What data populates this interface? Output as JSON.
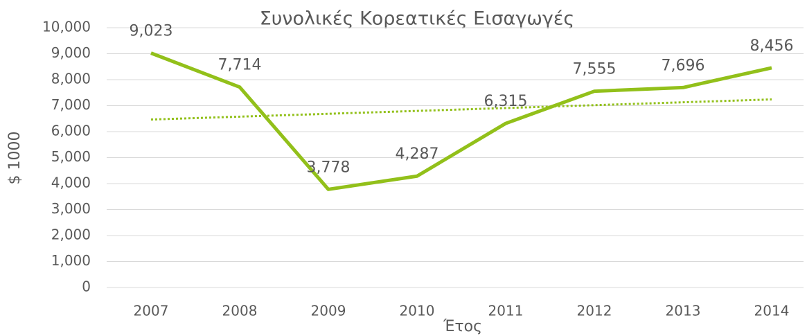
{
  "chart_data": {
    "type": "line",
    "title": "Συνολικές Κορεατικές Εισαγωγές",
    "x_label": "Έτος",
    "y_label": "$ 1000",
    "categories": [
      "2007",
      "2008",
      "2009",
      "2010",
      "2011",
      "2012",
      "2013",
      "2014"
    ],
    "series": [
      {
        "name": "Συνολικές Κορεατικές Εισαγωγές",
        "color": "#92c01a",
        "values": [
          9023,
          7714,
          3778,
          4287,
          6315,
          7555,
          7696,
          8456
        ],
        "value_labels": [
          "9,023",
          "7,714",
          "3,778",
          "4,287",
          "6,315",
          "7,555",
          "7,696",
          "8,456"
        ]
      }
    ],
    "trendline": {
      "type": "linear",
      "color": "#92c01a",
      "style": "dotted",
      "values": [
        6466,
        7240
      ]
    },
    "ylim": [
      0,
      10000
    ],
    "yticks": [
      0,
      {
        "value": 1000,
        "label": "1,000"
      },
      {
        "value": 2000,
        "label": "2,000"
      },
      {
        "value": 3000,
        "label": "3,000"
      },
      {
        "value": 4000,
        "label": "4,000"
      },
      {
        "value": 5000,
        "label": "5,000"
      },
      {
        "value": 6000,
        "label": "6,000"
      },
      {
        "value": 7000,
        "label": "7,000"
      },
      {
        "value": 8000,
        "label": "8,000"
      },
      {
        "value": 9000,
        "label": "9,000"
      },
      {
        "value": 10000,
        "label": "10,000"
      }
    ],
    "grid": true
  }
}
